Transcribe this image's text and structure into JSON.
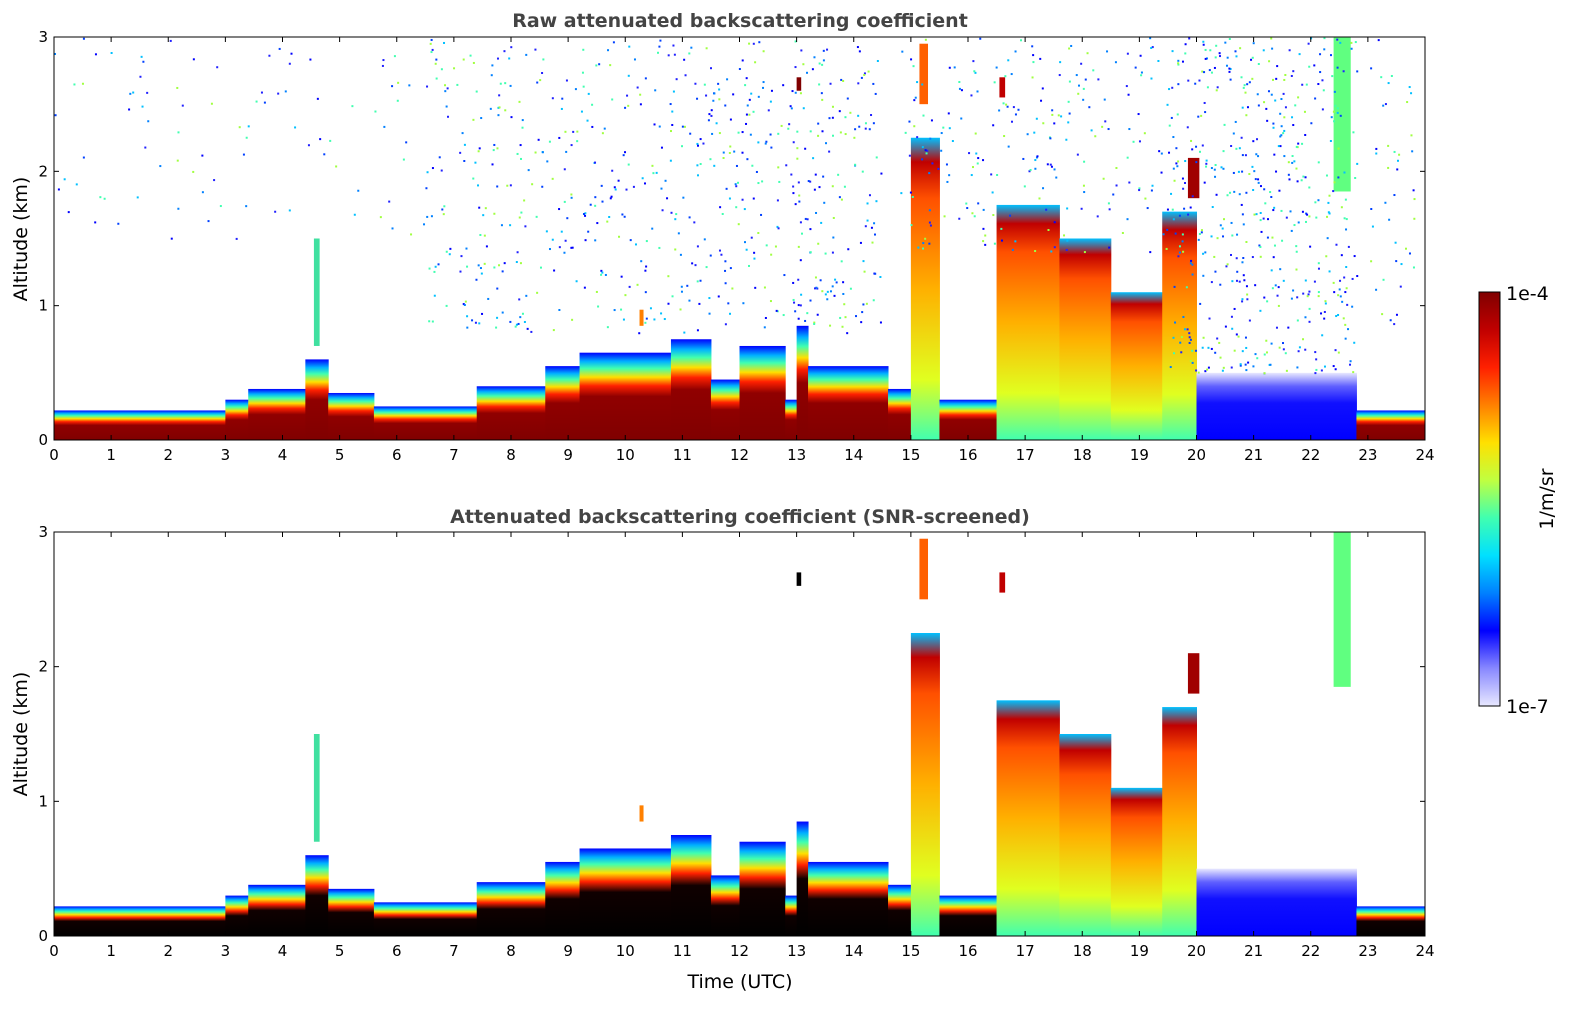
{
  "chart_data": [
    {
      "type": "heatmap",
      "title": "Raw attenuated backscattering coefficient",
      "xlabel": "",
      "ylabel": "Altitude (km)",
      "xlim": [
        0,
        24
      ],
      "ylim": [
        0,
        3
      ],
      "xticks": [
        "0",
        "1",
        "2",
        "3",
        "4",
        "5",
        "6",
        "7",
        "8",
        "9",
        "10",
        "11",
        "12",
        "13",
        "14",
        "15",
        "16",
        "17",
        "18",
        "19",
        "20",
        "21",
        "22",
        "23",
        "24"
      ],
      "yticks": [
        "0",
        "1",
        "2",
        "3"
      ],
      "screened": false
    },
    {
      "type": "heatmap",
      "title": "Attenuated backscattering coefficient (SNR-screened)",
      "xlabel": "Time (UTC)",
      "ylabel": "Altitude (km)",
      "xlim": [
        0,
        24
      ],
      "ylim": [
        0,
        3
      ],
      "xticks": [
        "0",
        "1",
        "2",
        "3",
        "4",
        "5",
        "6",
        "7",
        "8",
        "9",
        "10",
        "11",
        "12",
        "13",
        "14",
        "15",
        "16",
        "17",
        "18",
        "19",
        "20",
        "21",
        "22",
        "23",
        "24"
      ],
      "yticks": [
        "0",
        "1",
        "2",
        "3"
      ],
      "screened": true
    }
  ],
  "colorbar": {
    "label": "1/m/sr",
    "max_label": "1e-4",
    "min_label": "1e-7",
    "range": [
      1e-07,
      0.0001
    ],
    "scale": "log",
    "colormap": [
      "#e8e8ff",
      "#8888ff",
      "#0000ff",
      "#0080ff",
      "#00e0ff",
      "#40ffb0",
      "#c0ff40",
      "#ffe000",
      "#ff8000",
      "#ff2000",
      "#c00000",
      "#800000"
    ]
  },
  "layers": [
    {
      "start": 0,
      "end": 3,
      "top_km": 0.22,
      "type": "aerosol"
    },
    {
      "start": 3,
      "end": 3.4,
      "top_km": 0.3,
      "type": "aerosol"
    },
    {
      "start": 3.4,
      "end": 4.4,
      "top_km": 0.38,
      "type": "aerosol"
    },
    {
      "start": 4.4,
      "end": 4.8,
      "top_km": 0.6,
      "type": "aerosol"
    },
    {
      "start": 4.8,
      "end": 5.6,
      "top_km": 0.35,
      "type": "aerosol"
    },
    {
      "start": 5.6,
      "end": 7.4,
      "top_km": 0.25,
      "type": "aerosol"
    },
    {
      "start": 7.4,
      "end": 8.6,
      "top_km": 0.4,
      "type": "aerosol"
    },
    {
      "start": 8.6,
      "end": 9.2,
      "top_km": 0.55,
      "type": "aerosol"
    },
    {
      "start": 9.2,
      "end": 10.8,
      "top_km": 0.65,
      "type": "aerosol"
    },
    {
      "start": 10.8,
      "end": 11.5,
      "top_km": 0.75,
      "type": "aerosol"
    },
    {
      "start": 11.5,
      "end": 12.0,
      "top_km": 0.45,
      "type": "aerosol"
    },
    {
      "start": 12.0,
      "end": 12.8,
      "top_km": 0.7,
      "type": "aerosol"
    },
    {
      "start": 12.8,
      "end": 13.0,
      "top_km": 0.3,
      "type": "aerosol"
    },
    {
      "start": 13.0,
      "end": 13.2,
      "top_km": 0.85,
      "type": "aerosol"
    },
    {
      "start": 13.2,
      "end": 14.6,
      "top_km": 0.55,
      "type": "aerosol"
    },
    {
      "start": 14.6,
      "end": 15.0,
      "top_km": 0.38,
      "type": "aerosol"
    },
    {
      "start": 15.0,
      "end": 15.5,
      "top_km": 2.25,
      "type": "cloud"
    },
    {
      "start": 15.5,
      "end": 16.5,
      "top_km": 0.3,
      "type": "aerosol"
    },
    {
      "start": 16.5,
      "end": 17.6,
      "top_km": 1.75,
      "type": "cloud"
    },
    {
      "start": 17.6,
      "end": 18.5,
      "top_km": 1.5,
      "type": "cloud"
    },
    {
      "start": 18.5,
      "end": 19.4,
      "top_km": 1.1,
      "type": "cloud"
    },
    {
      "start": 19.4,
      "end": 20.0,
      "top_km": 1.7,
      "type": "cloud"
    },
    {
      "start": 20.0,
      "end": 22.8,
      "top_km": 0.5,
      "type": "weak"
    },
    {
      "start": 22.8,
      "end": 24,
      "top_km": 0.22,
      "type": "aerosol"
    }
  ],
  "streaks": [
    {
      "start": 4.55,
      "end": 4.65,
      "bottom_km": 0.7,
      "top_km": 1.5,
      "color": "#40e0a0"
    },
    {
      "start": 10.25,
      "end": 10.32,
      "bottom_km": 0.85,
      "top_km": 0.97,
      "color": "#ff8000"
    },
    {
      "start": 13.0,
      "end": 13.08,
      "bottom_km": 2.6,
      "top_km": 2.7,
      "color": "#800000"
    },
    {
      "start": 15.15,
      "end": 15.3,
      "bottom_km": 2.5,
      "top_km": 2.95,
      "color": "#ff6000"
    },
    {
      "start": 16.55,
      "end": 16.65,
      "bottom_km": 2.55,
      "top_km": 2.7,
      "color": "#c00000"
    },
    {
      "start": 19.85,
      "end": 20.05,
      "bottom_km": 1.8,
      "top_km": 2.1,
      "color": "#a00000"
    },
    {
      "start": 22.4,
      "end": 22.7,
      "bottom_km": 1.85,
      "top_km": 3.0,
      "color": "#60ff80"
    }
  ],
  "noise_regions": [
    {
      "start": 0,
      "end": 6.5,
      "bottom_km": 1.5,
      "top_km": 3,
      "density": 0.15
    },
    {
      "start": 6.5,
      "end": 14.5,
      "bottom_km": 0.8,
      "top_km": 3,
      "density": 0.6
    },
    {
      "start": 14.8,
      "end": 19.5,
      "bottom_km": 1.4,
      "top_km": 3,
      "density": 0.5
    },
    {
      "start": 19.5,
      "end": 22.8,
      "bottom_km": 0.5,
      "top_km": 3,
      "density": 1.0
    },
    {
      "start": 23,
      "end": 23.8,
      "bottom_km": 0.8,
      "top_km": 3,
      "density": 0.4
    }
  ]
}
